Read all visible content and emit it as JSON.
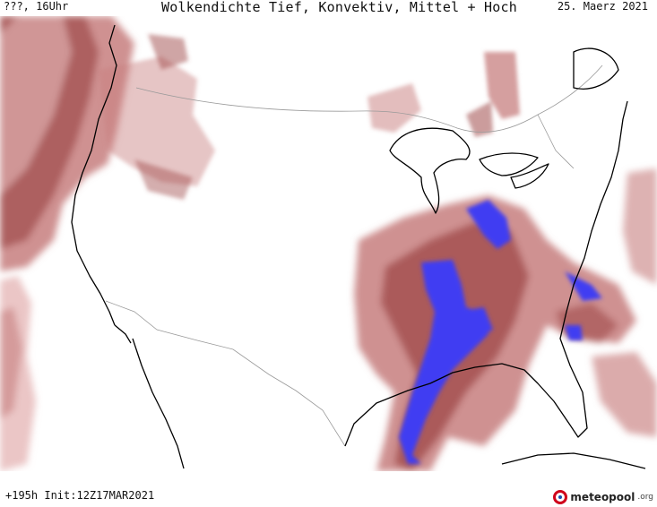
{
  "header": {
    "location_time": "???, 16Uhr",
    "title": "Wolkendichte  Tief, Konvektiv, Mittel + Hoch",
    "date": "25. Maerz 2021"
  },
  "footer": {
    "run_info": "+195h Init:12Z17MAR2021"
  },
  "logo": {
    "name": "meteopool",
    "tld": ".org"
  },
  "map": {
    "region": "North America / Contiguous United States",
    "colors": {
      "cloud_light": "#e8bcbc",
      "cloud_mid": "#c77e7e",
      "cloud_dense": "#a04a4a",
      "cloud_very_dense": "#3f3df2",
      "coastline": "#000000",
      "borders": "#9a9a9a",
      "background": "#ffffff"
    }
  }
}
